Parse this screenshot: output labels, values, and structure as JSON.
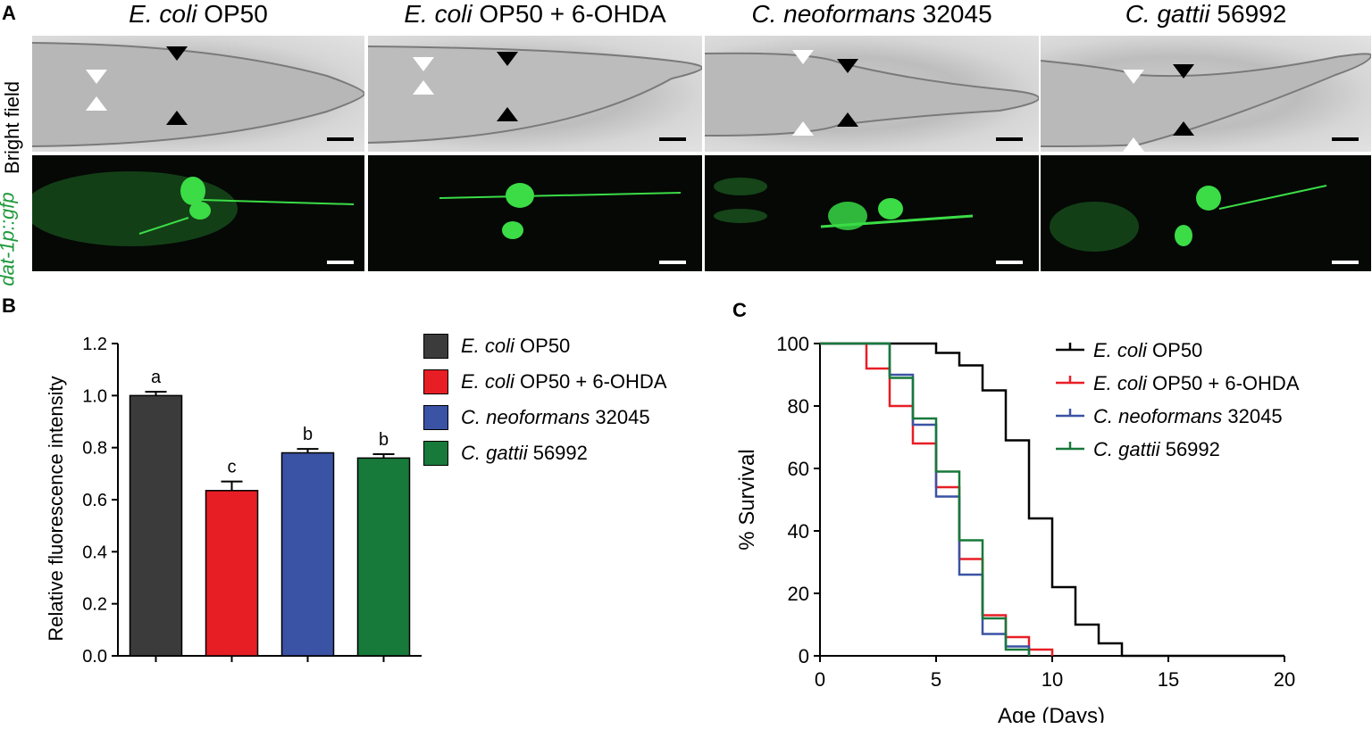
{
  "panels": {
    "a_label": "A",
    "b_label": "B",
    "c_label": "C"
  },
  "image_panel": {
    "row_labels": {
      "bright_field": "Bright field",
      "gfp": "dat-1p::gfp"
    },
    "columns": [
      {
        "italic": "E. coli",
        "rest": " OP50"
      },
      {
        "italic": "E. coli",
        "rest": " OP50 + 6-OHDA"
      },
      {
        "italic": "C. neoformans",
        "rest": " 32045"
      },
      {
        "italic": "C. gattii",
        "rest": " 56992"
      }
    ],
    "colors": {
      "gfp": "#2fcf3a",
      "bright_field": "#c4c4c4"
    }
  },
  "chart_data": [
    {
      "type": "bar",
      "ylabel": "Relative fluorescence intensity",
      "ylim": [
        0,
        1.2
      ],
      "yticks": [
        "0.0",
        "0.2",
        "0.4",
        "0.6",
        "0.8",
        "1.0",
        "1.2"
      ],
      "categories": [
        "E. coli OP50",
        "E. coli OP50 + 6-OHDA",
        "C. neoformans 32045",
        "C. gattii 56992"
      ],
      "values": [
        1.0,
        0.635,
        0.78,
        0.76
      ],
      "errors": [
        0.015,
        0.035,
        0.015,
        0.015
      ],
      "letters": [
        "a",
        "c",
        "b",
        "b"
      ],
      "colors": [
        "#3b3b3b",
        "#e81e25",
        "#3a53a4",
        "#17793a"
      ],
      "legend": [
        {
          "italic": "E. coli",
          "rest": " OP50"
        },
        {
          "italic": "E. coli",
          "rest": " OP50 + 6-OHDA"
        },
        {
          "italic": "C. neoformans",
          "rest": " 32045"
        },
        {
          "italic": "C. gattii",
          "rest": " 56992"
        }
      ],
      "legend_position": "right"
    },
    {
      "type": "line",
      "step": true,
      "xlabel": "Age (Days)",
      "ylabel": "% Survival",
      "xlim": [
        0,
        20
      ],
      "ylim": [
        0,
        100
      ],
      "xticks": [
        "0",
        "5",
        "10",
        "15",
        "20"
      ],
      "yticks": [
        "0",
        "20",
        "40",
        "60",
        "80",
        "100"
      ],
      "series": [
        {
          "name": {
            "italic": "E. coli",
            "rest": " OP50"
          },
          "color": "#000000",
          "points": [
            [
              0,
              100
            ],
            [
              5,
              100
            ],
            [
              5,
              97
            ],
            [
              6,
              97
            ],
            [
              6,
              93
            ],
            [
              7,
              93
            ],
            [
              7,
              85
            ],
            [
              8,
              85
            ],
            [
              8,
              69
            ],
            [
              9,
              69
            ],
            [
              9,
              44
            ],
            [
              10,
              44
            ],
            [
              10,
              22
            ],
            [
              11,
              22
            ],
            [
              11,
              10
            ],
            [
              12,
              10
            ],
            [
              12,
              4
            ],
            [
              13,
              4
            ],
            [
              13,
              0
            ],
            [
              20,
              0
            ]
          ]
        },
        {
          "name": {
            "italic": "E. coli",
            "rest": " OP50 + 6-OHDA"
          },
          "color": "#e81e25",
          "points": [
            [
              0,
              100
            ],
            [
              2,
              100
            ],
            [
              2,
              92
            ],
            [
              3,
              92
            ],
            [
              3,
              80
            ],
            [
              4,
              80
            ],
            [
              4,
              68
            ],
            [
              5,
              68
            ],
            [
              5,
              54
            ],
            [
              6,
              54
            ],
            [
              6,
              31
            ],
            [
              7,
              31
            ],
            [
              7,
              13
            ],
            [
              8,
              13
            ],
            [
              8,
              6
            ],
            [
              9,
              6
            ],
            [
              9,
              2
            ],
            [
              10,
              2
            ],
            [
              10,
              0
            ]
          ]
        },
        {
          "name": {
            "italic": "C. neoformans",
            "rest": " 32045"
          },
          "color": "#3a53a4",
          "points": [
            [
              0,
              100
            ],
            [
              3,
              100
            ],
            [
              3,
              90
            ],
            [
              4,
              90
            ],
            [
              4,
              74
            ],
            [
              5,
              74
            ],
            [
              5,
              51
            ],
            [
              6,
              51
            ],
            [
              6,
              26
            ],
            [
              7,
              26
            ],
            [
              7,
              7
            ],
            [
              8,
              7
            ],
            [
              8,
              3
            ],
            [
              9,
              3
            ],
            [
              9,
              0
            ]
          ]
        },
        {
          "name": {
            "italic": "C. gattii",
            "rest": " 56992"
          },
          "color": "#17793a",
          "points": [
            [
              0,
              100
            ],
            [
              3,
              100
            ],
            [
              3,
              89
            ],
            [
              4,
              89
            ],
            [
              4,
              76
            ],
            [
              5,
              76
            ],
            [
              5,
              59
            ],
            [
              6,
              59
            ],
            [
              6,
              37
            ],
            [
              7,
              37
            ],
            [
              7,
              12
            ],
            [
              8,
              12
            ],
            [
              8,
              2
            ],
            [
              9,
              2
            ],
            [
              9,
              0
            ]
          ]
        }
      ],
      "legend_position": "top-right"
    }
  ]
}
